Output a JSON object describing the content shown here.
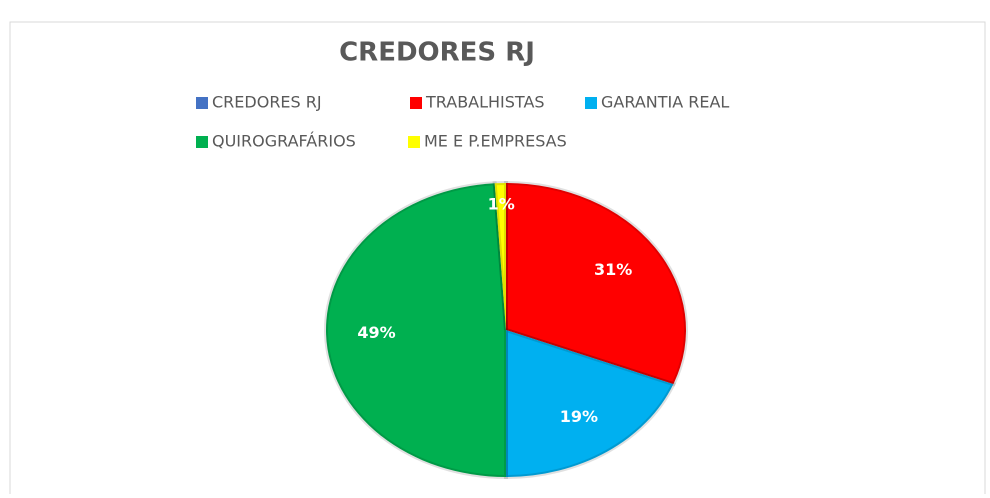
{
  "chart_data": {
    "type": "pie",
    "title": "CREDORES RJ",
    "categories": [
      "CREDORES RJ",
      "TRABALHISTAS",
      "GARANTIA REAL",
      "QUIROGRAFÁRIOS",
      "ME E P.EMPRESAS"
    ],
    "values": [
      0,
      31,
      19,
      49,
      1
    ],
    "value_labels": [
      null,
      "31%",
      "19%",
      "49%",
      "1%"
    ],
    "colors": [
      "#4472c4",
      "#ff0000",
      "#00b0f0",
      "#00b050",
      "#ffff00"
    ],
    "legend": "top"
  }
}
